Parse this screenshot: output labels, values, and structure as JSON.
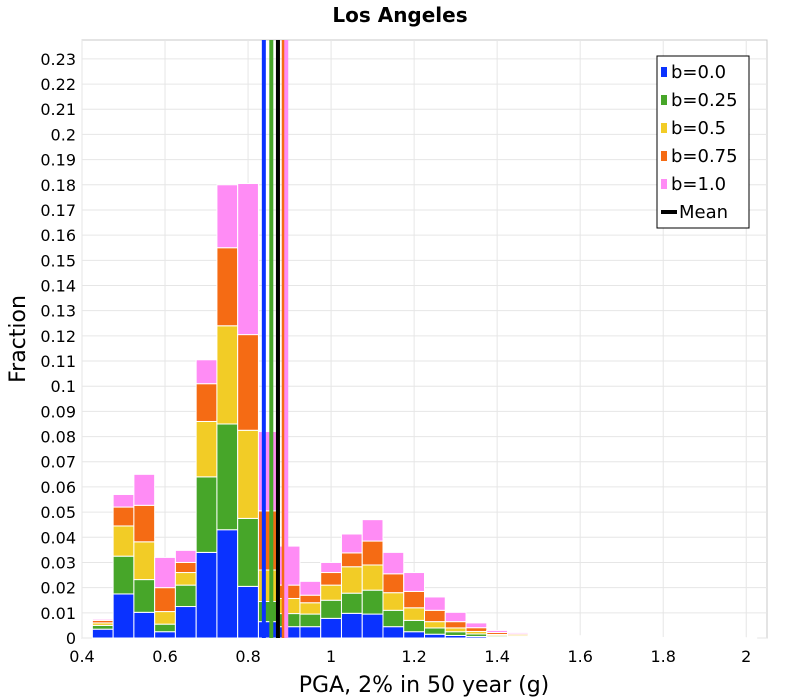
{
  "chart_data": {
    "type": "bar",
    "title": "Los Angeles",
    "xlabel": "PGA, 2% in 50 year (g)",
    "ylabel": "Fraction",
    "xlim": [
      0.4,
      2.05
    ],
    "ylim": [
      0,
      0.2375
    ],
    "xticks": [
      "0.4",
      "0.6",
      "0.8",
      "1",
      "1.2",
      "1.4",
      "1.6",
      "1.8",
      "2"
    ],
    "yticks": [
      "0",
      "0.01",
      "0.02",
      "0.03",
      "0.04",
      "0.05",
      "0.06",
      "0.07",
      "0.08",
      "0.09",
      "0.1",
      "0.11",
      "0.12",
      "0.13",
      "0.14",
      "0.15",
      "0.16",
      "0.17",
      "0.18",
      "0.19",
      "0.2",
      "0.21",
      "0.22",
      "0.23"
    ],
    "bin_width": 0.05,
    "stacked": true,
    "grid": true,
    "legend_position": "top-right",
    "bins": [
      0.45,
      0.5,
      0.55,
      0.6,
      0.65,
      0.7,
      0.75,
      0.8,
      0.85,
      0.9,
      0.95,
      1.0,
      1.05,
      1.1,
      1.15,
      1.2,
      1.25,
      1.3,
      1.35,
      1.4,
      1.45,
      1.5,
      1.55,
      1.6,
      1.65,
      1.7,
      1.75,
      1.8,
      1.85,
      1.9,
      1.95,
      2.0
    ],
    "series": [
      {
        "name": "b=0.0",
        "color": "#0a32ff",
        "values": [
          0.0035,
          0.0175,
          0.0102,
          0.0025,
          0.0125,
          0.034,
          0.043,
          0.0205,
          0.0065,
          0.0045,
          0.0045,
          0.0078,
          0.0098,
          0.0095,
          0.0045,
          0.0025,
          0.0015,
          0.001,
          0.0006,
          0.0004,
          0.0003,
          0.0002,
          0.0002,
          0.0001,
          0.0001,
          0.0001,
          0,
          0,
          0,
          0,
          0,
          0
        ]
      },
      {
        "name": "b=0.25",
        "color": "#47a629",
        "values": [
          0.0015,
          0.015,
          0.013,
          0.003,
          0.0085,
          0.03,
          0.042,
          0.027,
          0.008,
          0.0052,
          0.005,
          0.0072,
          0.008,
          0.0095,
          0.0065,
          0.0045,
          0.0025,
          0.0015,
          0.001,
          0.0005,
          0.0004,
          0.0003,
          0.0002,
          0.0001,
          0.0001,
          0.0001,
          0,
          0,
          0,
          0,
          0,
          0
        ]
      },
      {
        "name": "b=0.5",
        "color": "#f2cc26",
        "values": [
          0.001,
          0.012,
          0.015,
          0.005,
          0.005,
          0.022,
          0.039,
          0.035,
          0.0125,
          0.006,
          0.0045,
          0.006,
          0.0105,
          0.01,
          0.007,
          0.005,
          0.0025,
          0.0015,
          0.001,
          0.0005,
          0.0005,
          0.0002,
          0.0002,
          0.0002,
          0.0001,
          0.0001,
          0,
          0,
          0,
          0,
          0,
          0
        ]
      },
      {
        "name": "b=0.75",
        "color": "#f56b14",
        "values": [
          0.001,
          0.0075,
          0.0145,
          0.0095,
          0.004,
          0.015,
          0.031,
          0.038,
          0.0235,
          0.0053,
          0.003,
          0.005,
          0.0055,
          0.0095,
          0.0075,
          0.0065,
          0.0045,
          0.0025,
          0.0015,
          0.0008,
          0.0005,
          0.0003,
          0.0003,
          0.0002,
          0.0001,
          0.0001,
          0.0001,
          0,
          0,
          0,
          0,
          0
        ]
      },
      {
        "name": "b=1.0",
        "color": "#ff8cf5",
        "values": [
          0.0005,
          0.005,
          0.0123,
          0.012,
          0.0048,
          0.0095,
          0.025,
          0.06,
          0.0315,
          0.0155,
          0.0055,
          0.004,
          0.0075,
          0.0085,
          0.0085,
          0.0075,
          0.0053,
          0.0037,
          0.0019,
          0.0008,
          0.0005,
          0.0003,
          0.0003,
          0.0003,
          0.0002,
          0.0002,
          0.0002,
          0.0002,
          0.0001,
          0.0001,
          0.0001,
          0.0001
        ]
      }
    ],
    "means": [
      {
        "name": "b=0.0",
        "color": "#0a32ff",
        "x": 0.838
      },
      {
        "name": "b=0.25",
        "color": "#47a629",
        "x": 0.856
      },
      {
        "name": "b=0.5",
        "color": "#f2cc26",
        "x": 0.872
      },
      {
        "name": "b=0.75",
        "color": "#f56b14",
        "x": 0.886
      },
      {
        "name": "b=1.0",
        "color": "#ff8cf5",
        "x": 0.892
      },
      {
        "name": "Mean",
        "color": "#000000",
        "x": 0.872
      }
    ],
    "legend": [
      {
        "label": "b=0.0",
        "color": "#0a32ff",
        "kind": "box"
      },
      {
        "label": "b=0.25",
        "color": "#47a629",
        "kind": "box"
      },
      {
        "label": "b=0.5",
        "color": "#f2cc26",
        "kind": "box"
      },
      {
        "label": "b=0.75",
        "color": "#f56b14",
        "kind": "box"
      },
      {
        "label": "b=1.0",
        "color": "#ff8cf5",
        "kind": "box"
      },
      {
        "label": "Mean",
        "color": "#000000",
        "kind": "line"
      }
    ]
  }
}
